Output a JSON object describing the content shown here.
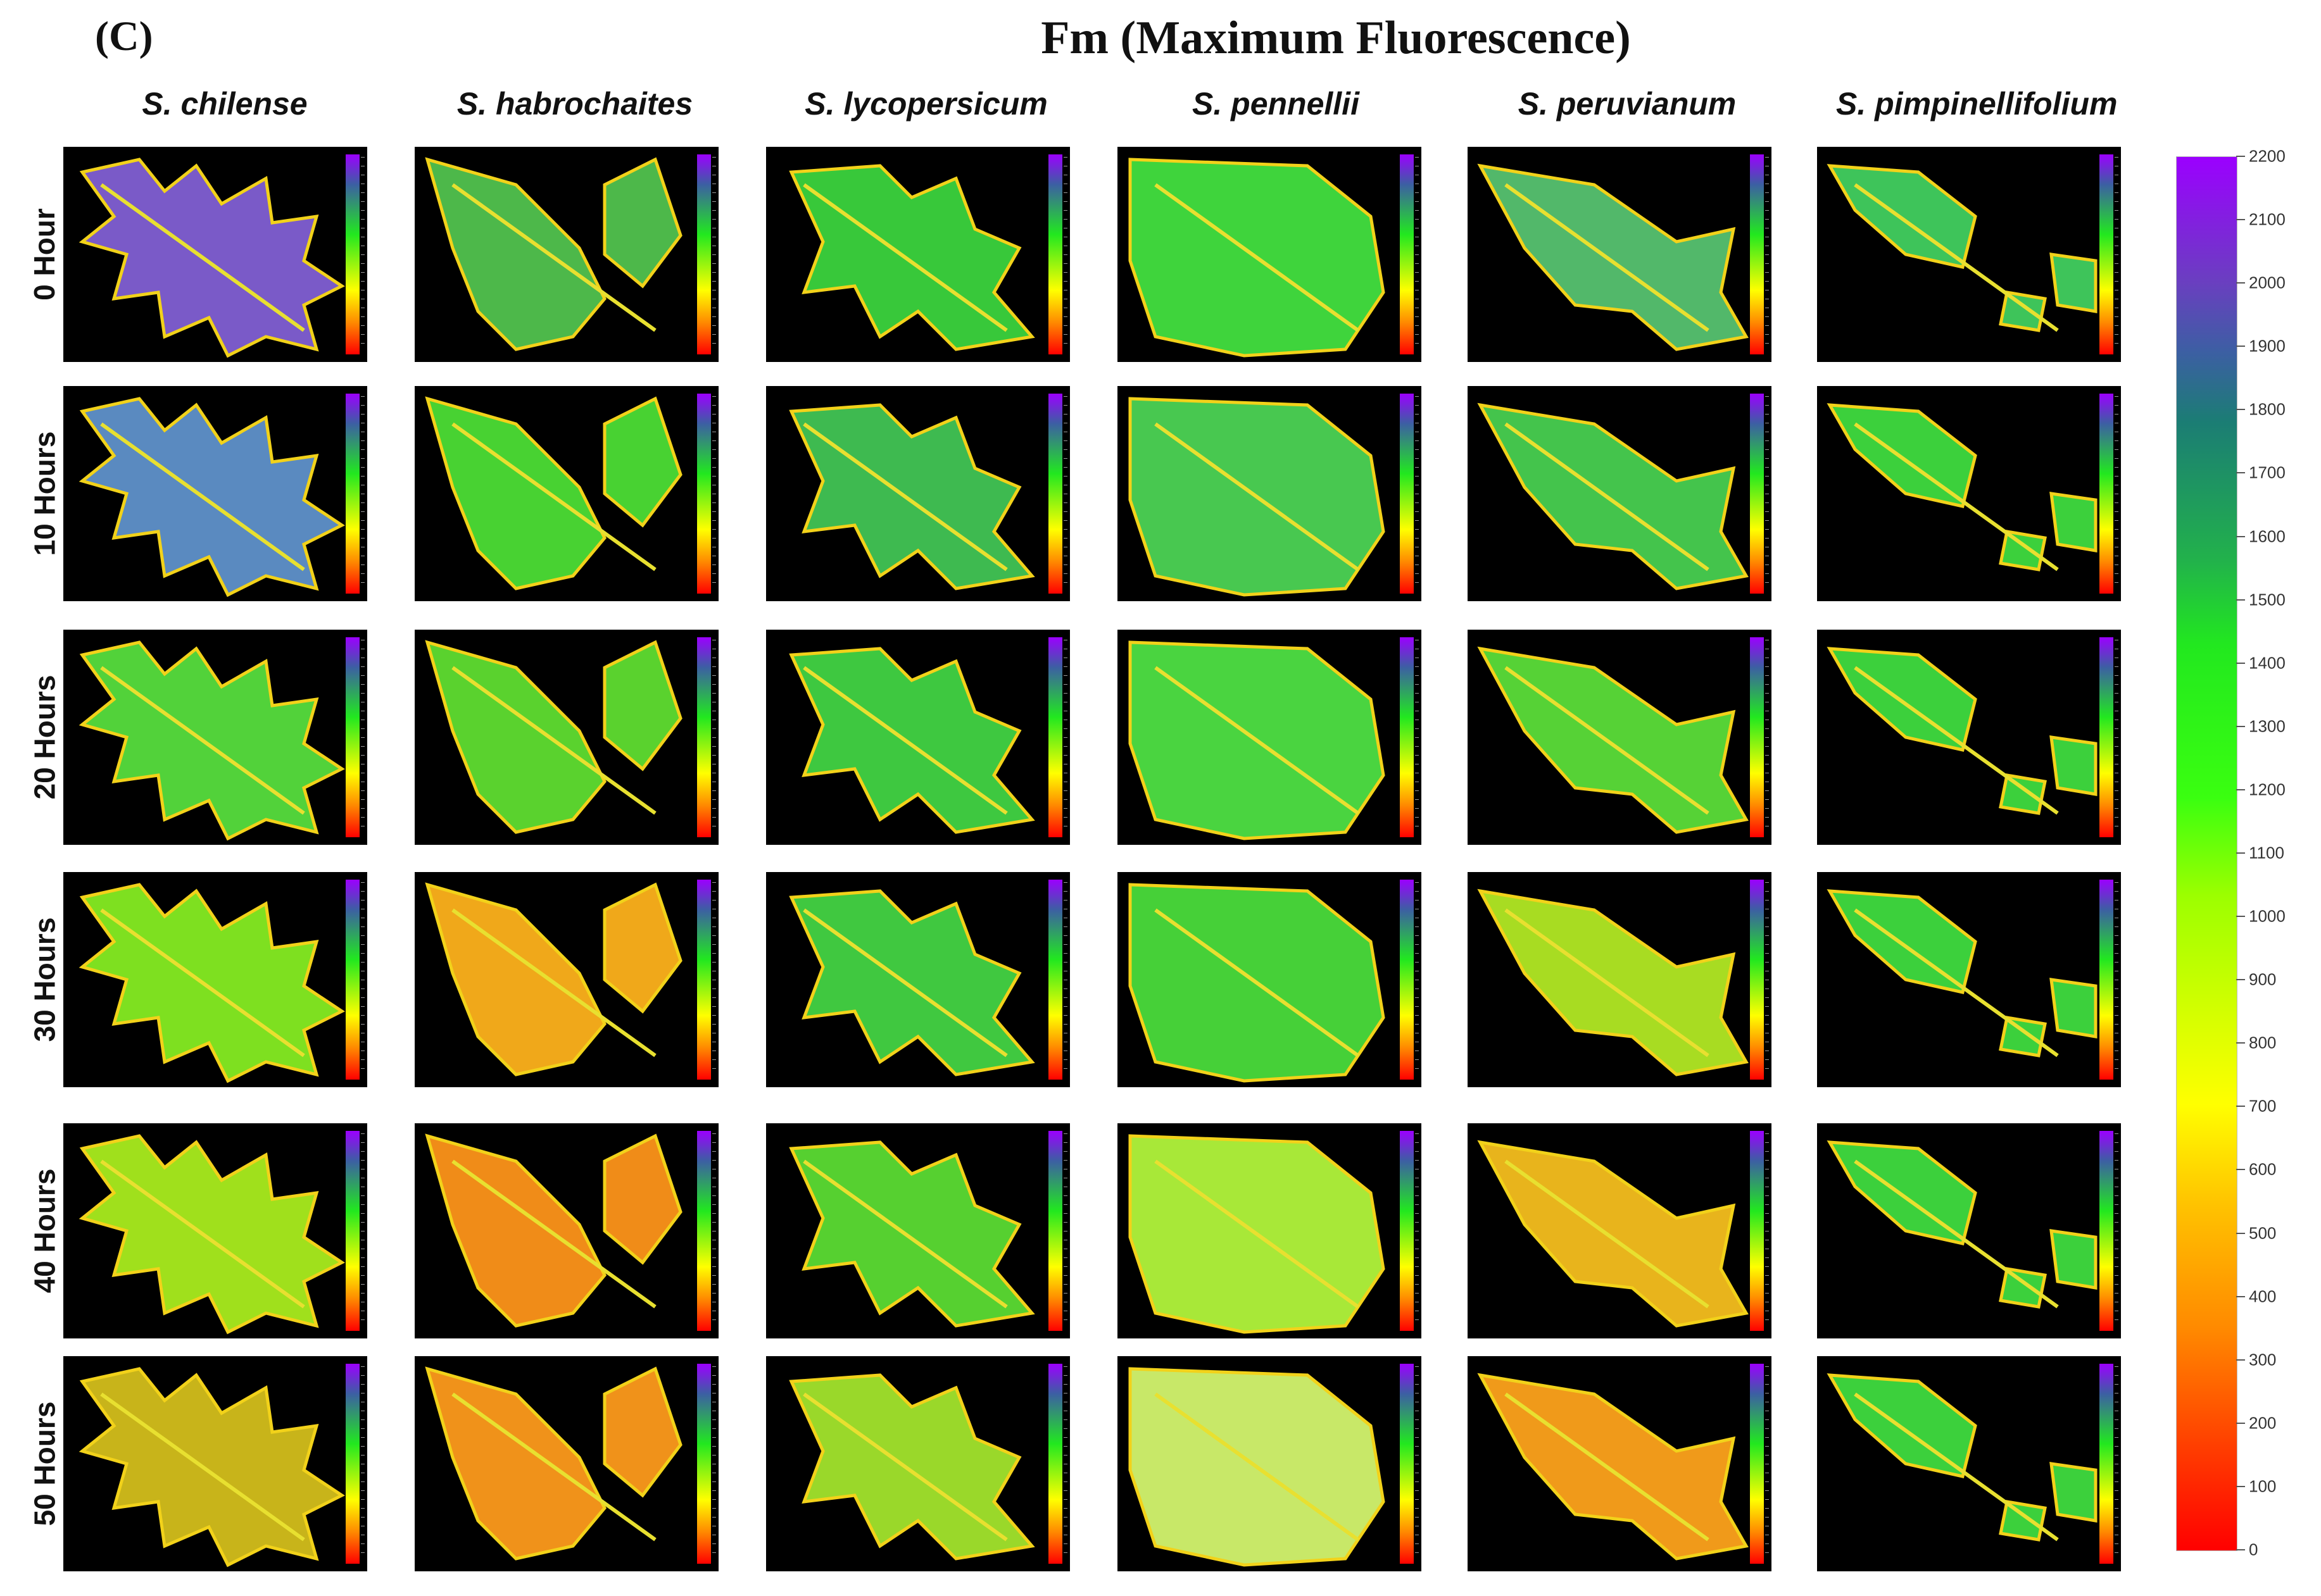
{
  "panel_label": "(C)",
  "title": "Fm (Maximum Fluorescence)",
  "species": [
    "S. chilense",
    "S. habrochaites",
    "S. lycopersicum",
    "S. pennellii",
    "S. peruvianum",
    "S. pimpinellifolium"
  ],
  "timepoints": [
    "0 Hour",
    "10 Hours",
    "20 Hours",
    "30 Hours",
    "40 Hours",
    "50 Hours"
  ],
  "colorbar": {
    "min": 0,
    "max": 2200,
    "ticks": [
      "2200",
      "2100",
      "2000",
      "1900",
      "1800",
      "1700",
      "1600",
      "1500",
      "1400",
      "1300",
      "1200",
      "1100",
      "1000",
      "900",
      "800",
      "700",
      "600",
      "500",
      "400",
      "300",
      "200",
      "100",
      "0"
    ],
    "colors": {
      "high": "#9b00ff",
      "blue": "#3c5fa3",
      "green": "#22e81f",
      "yellow": "#ffff00",
      "orange": "#ff8a00",
      "low": "#ff0000"
    }
  },
  "tiles": [
    [
      "#7a5ac8",
      "#4db84a",
      "#38c83a",
      "#3fd43c",
      "#52b86a",
      "#3ec45a"
    ],
    [
      "#5a8ac0",
      "#48d232",
      "#3eba50",
      "#48c850",
      "#44c44c",
      "#3cd03c"
    ],
    [
      "#52d23a",
      "#5ad22e",
      "#3ec840",
      "#4ad440",
      "#56d236",
      "#3cd03c"
    ],
    [
      "#7ee020",
      "#f0a81a",
      "#40c840",
      "#46d038",
      "#a8dc22",
      "#3cd03c"
    ],
    [
      "#a0e01c",
      "#f08c18",
      "#56d030",
      "#a8e838",
      "#e8b41c",
      "#3cd03c"
    ],
    [
      "#c8b41a",
      "#f0921a",
      "#9ad82a",
      "#c8e868",
      "#f09a1a",
      "#3cd03c"
    ]
  ]
}
